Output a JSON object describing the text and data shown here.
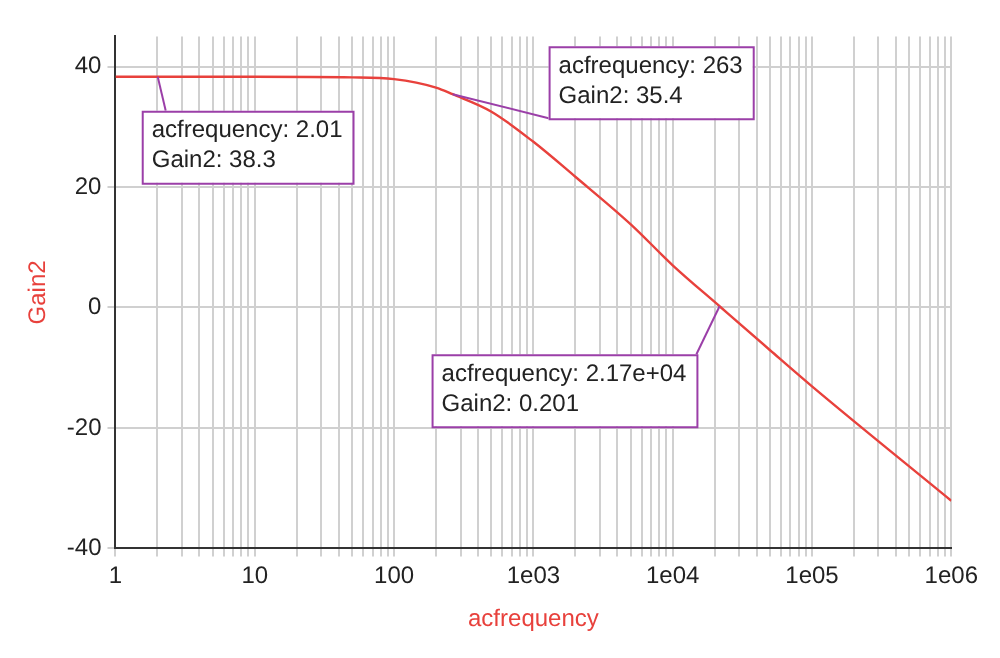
{
  "chart_data": {
    "type": "line",
    "xlabel": "acfrequency",
    "ylabel": "Gain2",
    "log": "x",
    "grid": true,
    "legend": false,
    "marker": "none",
    "line_style": "solid",
    "xlim": [
      1,
      1000000
    ],
    "ylim": [
      -40,
      45
    ],
    "xticks": [
      {
        "value": 1,
        "label": "1"
      },
      {
        "value": 2,
        "label": null
      },
      {
        "value": 3,
        "label": null
      },
      {
        "value": 4,
        "label": null
      },
      {
        "value": 5,
        "label": null
      },
      {
        "value": 6,
        "label": null
      },
      {
        "value": 7,
        "label": null
      },
      {
        "value": 8,
        "label": null
      },
      {
        "value": 9,
        "label": null
      },
      {
        "value": 10,
        "label": "10"
      },
      {
        "value": 20,
        "label": null
      },
      {
        "value": 30,
        "label": null
      },
      {
        "value": 40,
        "label": null
      },
      {
        "value": 50,
        "label": null
      },
      {
        "value": 60,
        "label": null
      },
      {
        "value": 70,
        "label": null
      },
      {
        "value": 80,
        "label": null
      },
      {
        "value": 90,
        "label": null
      },
      {
        "value": 100,
        "label": "100"
      },
      {
        "value": 200,
        "label": null
      },
      {
        "value": 300,
        "label": null
      },
      {
        "value": 400,
        "label": null
      },
      {
        "value": 500,
        "label": null
      },
      {
        "value": 600,
        "label": null
      },
      {
        "value": 700,
        "label": null
      },
      {
        "value": 800,
        "label": null
      },
      {
        "value": 900,
        "label": null
      },
      {
        "value": 1000,
        "label": "1e03"
      },
      {
        "value": 2000,
        "label": null
      },
      {
        "value": 3000,
        "label": null
      },
      {
        "value": 4000,
        "label": null
      },
      {
        "value": 5000,
        "label": null
      },
      {
        "value": 6000,
        "label": null
      },
      {
        "value": 7000,
        "label": null
      },
      {
        "value": 8000,
        "label": null
      },
      {
        "value": 9000,
        "label": null
      },
      {
        "value": 10000,
        "label": "1e04"
      },
      {
        "value": 20000,
        "label": null
      },
      {
        "value": 30000,
        "label": null
      },
      {
        "value": 40000,
        "label": null
      },
      {
        "value": 50000,
        "label": null
      },
      {
        "value": 60000,
        "label": null
      },
      {
        "value": 70000,
        "label": null
      },
      {
        "value": 80000,
        "label": null
      },
      {
        "value": 90000,
        "label": null
      },
      {
        "value": 100000,
        "label": "1e05"
      },
      {
        "value": 200000,
        "label": null
      },
      {
        "value": 300000,
        "label": null
      },
      {
        "value": 400000,
        "label": null
      },
      {
        "value": 500000,
        "label": null
      },
      {
        "value": 600000,
        "label": null
      },
      {
        "value": 700000,
        "label": null
      },
      {
        "value": 800000,
        "label": null
      },
      {
        "value": 900000,
        "label": null
      },
      {
        "value": 1000000,
        "label": "1e06"
      }
    ],
    "yticks": [
      -40,
      -20,
      0,
      20,
      40
    ],
    "x": [
      1,
      2.01,
      10,
      50,
      100,
      200,
      263,
      500,
      1000,
      2000,
      5000,
      10000,
      21700,
      50000,
      100000,
      1000000
    ],
    "series": [
      {
        "color": "#e8413c",
        "values": [
          38.3,
          38.3,
          38.3,
          38.2,
          37.9,
          36.5,
          35.4,
          32.5,
          27.5,
          21.7,
          13.8,
          7,
          0.201,
          -7.1,
          -13.1,
          -32.1
        ]
      }
    ],
    "annotations": [
      {
        "text": "acfrequency: 2.01\nGain2: 38.3",
        "x": 2.01,
        "y": 38.3
      },
      {
        "text": "acfrequency: 263\nGain2: 35.4",
        "x": 263,
        "y": 35.4
      },
      {
        "text": "acfrequency: 2.17e+04\nGain2: 0.201",
        "x": 21700,
        "y": 0.201
      }
    ]
  }
}
